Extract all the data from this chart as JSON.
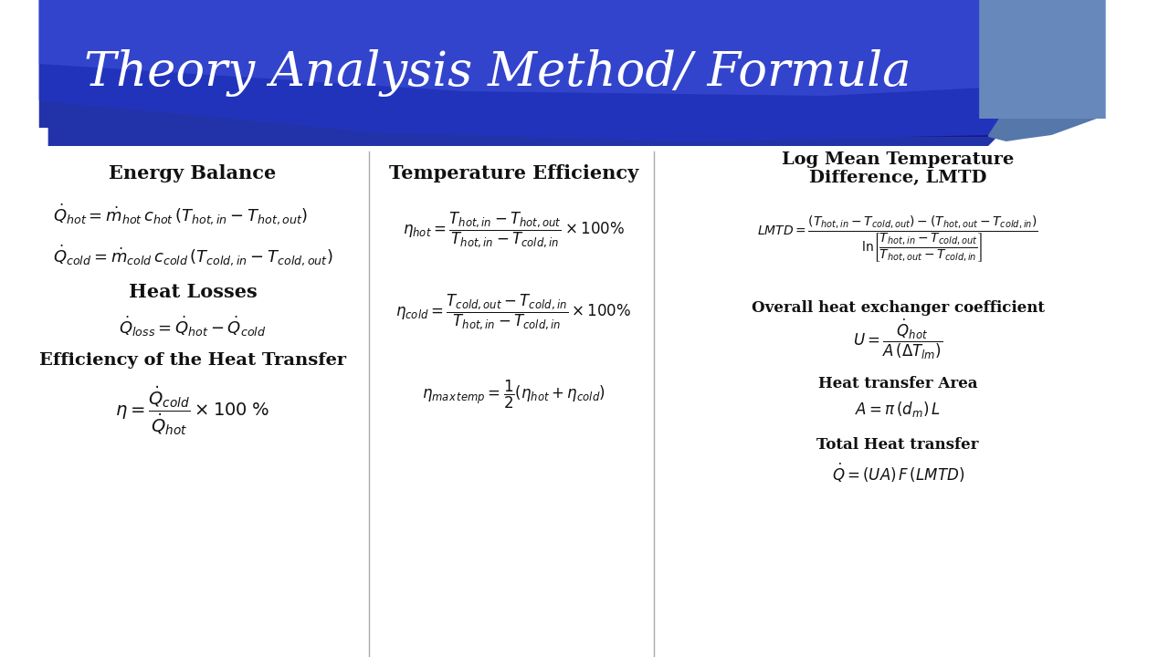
{
  "title": "Theory Analysis Method/ Formula",
  "bg_color": "#ffffff",
  "header_color1": "#2a2a8f",
  "header_color2": "#5555cc",
  "accent_color": "#5577aa",
  "title_color": "#ffffff",
  "text_color": "#111111",
  "col1_title": "Energy Balance",
  "col2_title": "Temperature Efficiency",
  "col3_title": "Log Mean Temperature\nDifference, LMTD",
  "divider_color": "#aaaaaa",
  "accent_rect_color": "#6688bb"
}
